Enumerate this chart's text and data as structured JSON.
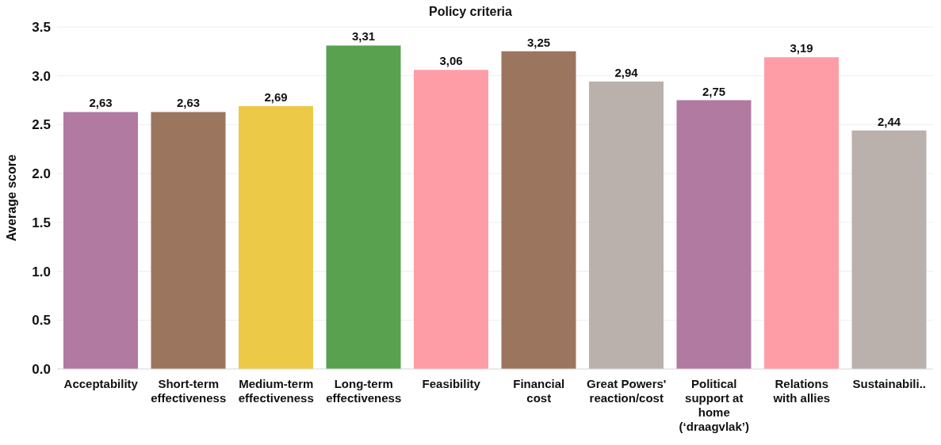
{
  "chart_data": {
    "type": "bar",
    "title": "Policy criteria",
    "ylabel": "Average score",
    "categories": [
      "Acceptability",
      "Short-term effectiveness",
      "Medium-term effectiveness",
      "Long-term effectiveness",
      "Feasibility",
      "Financial cost",
      "Great Powers' reaction/cost",
      "Political support at home (‘draagvlak’)",
      "Relations with allies",
      "Sustainabili.."
    ],
    "values": [
      2.63,
      2.63,
      2.69,
      3.31,
      3.06,
      3.25,
      2.94,
      2.75,
      3.19,
      2.44
    ],
    "colors": [
      "#b07aa1",
      "#9c755f",
      "#edc948",
      "#59a14f",
      "#ff9da7",
      "#9c755f",
      "#bab0ac",
      "#b07aa1",
      "#ff9da7",
      "#bab0ac"
    ],
    "value_labels": [
      "2,63",
      "2,63",
      "2,69",
      "3,31",
      "3,06",
      "3,25",
      "2,94",
      "2,75",
      "3,19",
      "2,44"
    ],
    "ylim": [
      0,
      3.5
    ],
    "yticks": [
      {
        "value": 0,
        "label": "0.0"
      },
      {
        "value": 0.5,
        "label": "0.5"
      },
      {
        "value": 1,
        "label": "1.0"
      },
      {
        "value": 1.5,
        "label": "1.5"
      },
      {
        "value": 2,
        "label": "2.0"
      },
      {
        "value": 2.5,
        "label": "2.5"
      },
      {
        "value": 3,
        "label": "3.0"
      },
      {
        "value": 3.5,
        "label": "3.5"
      }
    ],
    "grid": "y"
  }
}
